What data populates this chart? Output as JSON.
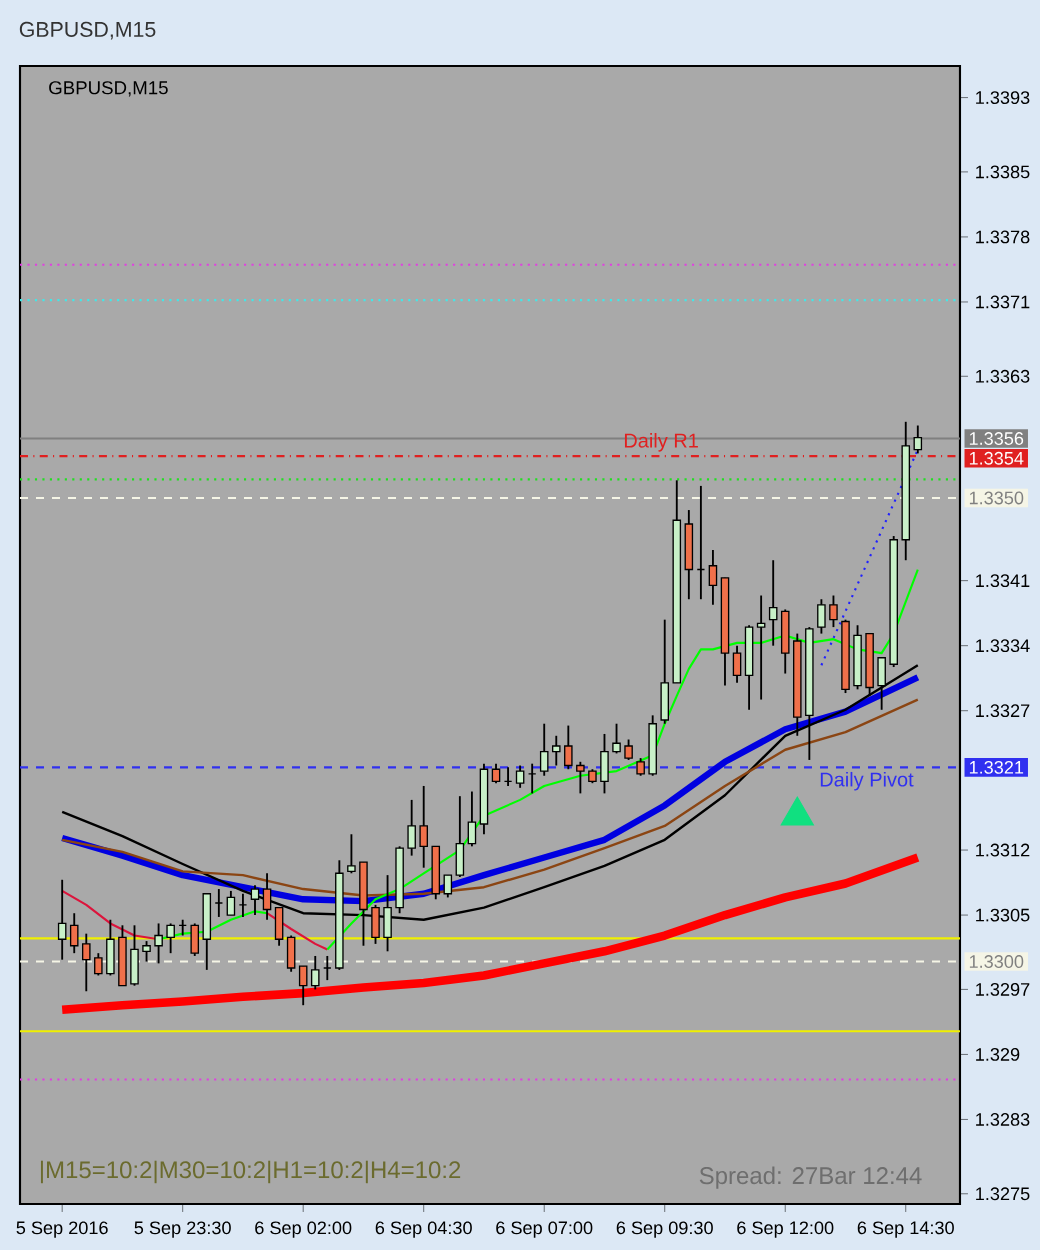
{
  "chart_data": {
    "type": "candlestick",
    "title": "GBPUSD,M15",
    "subtitle": "GBPUSD,M15",
    "categories": [
      "5 Sep 2016",
      null,
      null,
      null,
      null,
      null,
      null,
      null,
      null,
      null,
      "5 Sep 23:30",
      null,
      null,
      null,
      null,
      null,
      null,
      null,
      null,
      null,
      "6 Sep 02:00",
      null,
      null,
      null,
      null,
      null,
      null,
      null,
      null,
      null,
      "6 Sep 04:30",
      null,
      null,
      null,
      null,
      null,
      null,
      null,
      null,
      null,
      "6 Sep 07:00",
      null,
      null,
      null,
      null,
      null,
      null,
      null,
      null,
      null,
      "6 Sep 09:30",
      null,
      null,
      null,
      null,
      null,
      null,
      null,
      null,
      null,
      "6 Sep 12:00",
      null,
      null,
      null,
      null,
      null,
      null,
      null,
      null,
      null,
      "6 Sep 14:30",
      null
    ],
    "ohlc": [
      [
        1.33024,
        1.33088,
        1.33002,
        1.33041
      ],
      [
        1.33039,
        1.33052,
        1.33009,
        1.33017
      ],
      [
        1.33019,
        1.3303,
        1.32968,
        1.33002
      ],
      [
        1.33004,
        1.33009,
        1.32985,
        1.32987
      ],
      [
        1.32987,
        1.33045,
        1.32985,
        1.33024
      ],
      [
        1.33026,
        1.33039,
        1.32974,
        1.32974
      ],
      [
        1.32976,
        1.33039,
        1.32974,
        1.33013
      ],
      [
        1.33011,
        1.33022,
        1.33,
        1.33017
      ],
      [
        1.33017,
        1.33041,
        1.32998,
        1.33028
      ],
      [
        1.33026,
        1.33041,
        1.33009,
        1.33039
      ],
      [
        1.33039,
        1.33045,
        1.33028,
        1.33039
      ],
      [
        1.33039,
        1.33041,
        1.33006,
        1.33009
      ],
      [
        1.33024,
        1.33073,
        1.32991,
        1.33073
      ],
      [
        1.33063,
        1.33078,
        1.33048,
        1.33063
      ],
      [
        1.3305,
        1.33076,
        1.3305,
        1.33069
      ],
      [
        1.33061,
        1.33073,
        1.33048,
        1.33061
      ],
      [
        1.33067,
        1.33082,
        1.3305,
        1.33078
      ],
      [
        1.33078,
        1.33095,
        1.33045,
        1.33056
      ],
      [
        1.33058,
        1.33058,
        1.33017,
        1.33024
      ],
      [
        1.33026,
        1.33028,
        1.32989,
        1.32993
      ],
      [
        1.32995,
        1.32995,
        1.32953,
        1.32974
      ],
      [
        1.32974,
        1.33006,
        1.3297,
        1.32991
      ],
      [
        1.32993,
        1.33006,
        1.3298,
        1.32993
      ],
      [
        1.32993,
        1.33109,
        1.32991,
        1.33095
      ],
      [
        1.33097,
        1.33137,
        1.33095,
        1.33103
      ],
      [
        1.33107,
        1.33107,
        1.33017,
        1.33056
      ],
      [
        1.33058,
        1.33061,
        1.33019,
        1.33026
      ],
      [
        1.33026,
        1.33093,
        1.33011,
        1.33058
      ],
      [
        1.33058,
        1.33124,
        1.33052,
        1.33122
      ],
      [
        1.33122,
        1.33174,
        1.33114,
        1.33146
      ],
      [
        1.33146,
        1.33189,
        1.33101,
        1.33124
      ],
      [
        1.33124,
        1.33124,
        1.33067,
        1.33073
      ],
      [
        1.33073,
        1.33093,
        1.33069,
        1.33093
      ],
      [
        1.33093,
        1.33178,
        1.33091,
        1.33127
      ],
      [
        1.33127,
        1.33183,
        1.33124,
        1.3315
      ],
      [
        1.33148,
        1.33213,
        1.33137,
        1.33207
      ],
      [
        1.33207,
        1.33213,
        1.33192,
        1.33194
      ],
      [
        1.33194,
        1.33209,
        1.33189,
        1.33194
      ],
      [
        1.33192,
        1.33211,
        1.33187,
        1.33205
      ],
      [
        1.33202,
        1.33213,
        1.33181,
        1.33202
      ],
      [
        1.33205,
        1.33256,
        1.332,
        1.33226
      ],
      [
        1.33226,
        1.33243,
        1.33211,
        1.33232
      ],
      [
        1.33232,
        1.33254,
        1.33207,
        1.33211
      ],
      [
        1.33211,
        1.33215,
        1.33181,
        1.33205
      ],
      [
        1.33205,
        1.33207,
        1.33192,
        1.33194
      ],
      [
        1.33194,
        1.33245,
        1.33181,
        1.33226
      ],
      [
        1.33226,
        1.33256,
        1.33224,
        1.33235
      ],
      [
        1.33232,
        1.33239,
        1.33217,
        1.33219
      ],
      [
        1.33215,
        1.33219,
        1.332,
        1.33202
      ],
      [
        1.33202,
        1.33265,
        1.332,
        1.33256
      ],
      [
        1.3326,
        1.33368,
        1.33256,
        1.333
      ],
      [
        1.333,
        1.33518,
        1.333,
        1.33475
      ],
      [
        1.33471,
        1.33486,
        1.3339,
        1.33422
      ],
      [
        1.33422,
        1.33512,
        1.3339,
        1.33422
      ],
      [
        1.33426,
        1.33443,
        1.33384,
        1.33405
      ],
      [
        1.33413,
        1.33413,
        1.33297,
        1.33332
      ],
      [
        1.33332,
        1.3334,
        1.333,
        1.33308
      ],
      [
        1.33308,
        1.33362,
        1.33271,
        1.3336
      ],
      [
        1.3336,
        1.33394,
        1.33282,
        1.33364
      ],
      [
        1.33368,
        1.33432,
        1.3334,
        1.33381
      ],
      [
        1.33377,
        1.33379,
        1.3331,
        1.33332
      ],
      [
        1.33345,
        1.33353,
        1.33243,
        1.33263
      ],
      [
        1.33265,
        1.3336,
        1.33217,
        1.33358
      ],
      [
        1.3336,
        1.3339,
        1.33353,
        1.33384
      ],
      [
        1.33384,
        1.33394,
        1.3336,
        1.33368
      ],
      [
        1.33366,
        1.33368,
        1.33289,
        1.33293
      ],
      [
        1.33297,
        1.33362,
        1.33293,
        1.33351
      ],
      [
        1.33353,
        1.33353,
        1.33286,
        1.33295
      ],
      [
        1.33297,
        1.33327,
        1.33271,
        1.33327
      ],
      [
        1.3332,
        1.33458,
        1.33317,
        1.33454
      ],
      [
        1.33454,
        1.33581,
        1.33432,
        1.33555
      ],
      [
        1.33551,
        1.33577,
        1.33547,
        1.33564
      ]
    ],
    "colors": [
      "#c8f0c8",
      "#f0704a",
      "#f0704a",
      "#f0704a",
      "#c8f0c8",
      "#f0704a",
      "#c8f0c8",
      "#c8f0c8",
      "#c8f0c8",
      "#c8f0c8",
      "#000000",
      "#f0704a",
      "#c8f0c8",
      "#000000",
      "#c8f0c8",
      "#000000",
      "#c8f0c8",
      "#f0704a",
      "#f0704a",
      "#f0704a",
      "#f0704a",
      "#c8f0c8",
      "#000000",
      "#c8f0c8",
      "#c8f0c8",
      "#f0704a",
      "#f0704a",
      "#c8f0c8",
      "#c8f0c8",
      "#c8f0c8",
      "#f0704a",
      "#f0704a",
      "#c8f0c8",
      "#c8f0c8",
      "#c8f0c8",
      "#c8f0c8",
      "#f0704a",
      "#000000",
      "#c8f0c8",
      "#000000",
      "#c8f0c8",
      "#c8f0c8",
      "#f0704a",
      "#f0704a",
      "#f0704a",
      "#c8f0c8",
      "#c8f0c8",
      "#f0704a",
      "#f0704a",
      "#c8f0c8",
      "#c8f0c8",
      "#c8f0c8",
      "#f0704a",
      "#000000",
      "#f0704a",
      "#f0704a",
      "#f0704a",
      "#c8f0c8",
      "#c8f0c8",
      "#c8f0c8",
      "#f0704a",
      "#f0704a",
      "#c8f0c8",
      "#c8f0c8",
      "#f0704a",
      "#f0704a",
      "#c8f0c8",
      "#f0704a",
      "#c8f0c8",
      "#c8f0c8",
      "#c8f0c8",
      "#c8f0c8"
    ],
    "series": [
      {
        "type": "line",
        "color": "#ff0000",
        "values": [
          1.32948,
          null,
          null,
          null,
          null,
          1.32953,
          null,
          null,
          null,
          null,
          1.32957,
          null,
          null,
          null,
          null,
          1.32962,
          null,
          null,
          null,
          null,
          1.32966,
          null,
          null,
          null,
          null,
          1.32972,
          null,
          null,
          null,
          null,
          1.32977,
          null,
          null,
          null,
          null,
          1.32985,
          null,
          null,
          null,
          null,
          1.32998,
          null,
          null,
          null,
          null,
          1.33011,
          null,
          null,
          null,
          null,
          1.33028,
          null,
          null,
          null,
          null,
          1.3305,
          null,
          null,
          null,
          null,
          1.33069,
          null,
          null,
          null,
          null,
          1.33084,
          null,
          null,
          null,
          null,
          null,
          1.33112
        ]
      },
      {
        "type": "line",
        "color": "#0000e0",
        "values": [
          1.33133,
          null,
          null,
          null,
          null,
          1.33114,
          null,
          null,
          null,
          null,
          1.33093,
          null,
          null,
          null,
          null,
          1.3308,
          null,
          null,
          null,
          null,
          1.33067,
          null,
          null,
          null,
          null,
          1.33065,
          null,
          null,
          null,
          null,
          1.33073,
          null,
          null,
          null,
          null,
          1.33093,
          null,
          null,
          null,
          null,
          1.33112,
          null,
          null,
          null,
          null,
          1.33131,
          null,
          null,
          null,
          null,
          1.33168,
          null,
          null,
          null,
          null,
          1.33215,
          null,
          null,
          null,
          null,
          1.3325,
          null,
          null,
          null,
          null,
          1.33269,
          null,
          null,
          null,
          null,
          null,
          1.33306
        ]
      },
      {
        "type": "line",
        "color": "#000000",
        "values": [
          1.33161,
          null,
          null,
          null,
          null,
          1.33135,
          null,
          null,
          null,
          null,
          1.33105,
          null,
          null,
          null,
          null,
          1.33076,
          null,
          null,
          null,
          null,
          1.33052,
          null,
          null,
          null,
          null,
          1.3305,
          null,
          null,
          null,
          null,
          1.33045,
          null,
          null,
          null,
          null,
          1.33058,
          null,
          null,
          null,
          null,
          1.3308,
          null,
          null,
          null,
          null,
          1.33103,
          null,
          null,
          null,
          null,
          1.33131,
          null,
          null,
          null,
          null,
          1.33179,
          null,
          null,
          null,
          null,
          1.33243,
          null,
          null,
          null,
          null,
          1.33271,
          null,
          null,
          null,
          null,
          null,
          1.33319
        ]
      },
      {
        "type": "line",
        "color": "#8b4513",
        "values": [
          1.33131,
          null,
          null,
          null,
          null,
          1.33118,
          null,
          null,
          null,
          null,
          1.33097,
          null,
          null,
          null,
          null,
          1.33093,
          null,
          null,
          null,
          null,
          1.33078,
          null,
          null,
          null,
          null,
          1.33071,
          null,
          null,
          null,
          null,
          1.33073,
          null,
          null,
          null,
          null,
          1.3308,
          null,
          null,
          null,
          null,
          1.33099,
          null,
          null,
          null,
          null,
          1.33122,
          null,
          null,
          null,
          null,
          1.33146,
          null,
          null,
          null,
          null,
          1.33189,
          null,
          null,
          null,
          null,
          1.33228,
          null,
          null,
          null,
          null,
          1.33247,
          null,
          null,
          null,
          null,
          null,
          1.33282
        ]
      },
      {
        "type": "line",
        "color": "#dc143c",
        "values": [
          1.33076,
          null,
          1.33061,
          null,
          1.33041,
          null,
          1.33028,
          null,
          1.33024,
          null,
          null,
          null,
          null,
          null,
          null,
          null,
          null,
          null,
          null,
          null,
          null,
          null,
          null,
          null,
          null,
          null,
          null,
          null,
          null,
          null,
          null,
          null,
          null,
          null,
          null,
          null,
          null,
          null,
          null,
          null,
          null,
          null,
          null,
          null,
          null,
          null,
          null,
          null,
          null,
          null,
          null,
          null,
          null,
          null,
          null,
          null,
          null,
          null,
          null,
          null,
          null,
          null,
          null,
          null,
          null,
          null,
          null,
          null,
          null,
          null,
          null,
          null
        ]
      },
      {
        "type": "line",
        "color": "#00ff00",
        "values": [
          null,
          null,
          null,
          null,
          null,
          null,
          null,
          null,
          1.33024,
          null,
          1.3303,
          null,
          1.33032,
          null,
          1.33045,
          null,
          1.33054,
          1.33052,
          null,
          null,
          null,
          null,
          null,
          null,
          null,
          null,
          null,
          null,
          null,
          null,
          null,
          null,
          null,
          null,
          null,
          null,
          null,
          null,
          null,
          null,
          null,
          null,
          null,
          null,
          null,
          null,
          null,
          null,
          null,
          null,
          null,
          null,
          null,
          null,
          null,
          null,
          null,
          null,
          null,
          null,
          null,
          null,
          null,
          null,
          null,
          null,
          null,
          null,
          null,
          null,
          null,
          null
        ]
      },
      {
        "type": "line",
        "color": "#dc143c",
        "values": [
          null,
          null,
          null,
          null,
          null,
          null,
          null,
          null,
          null,
          null,
          null,
          null,
          null,
          null,
          null,
          null,
          null,
          1.33052,
          null,
          1.33035,
          null,
          1.33019,
          1.33013,
          null,
          null,
          null,
          null,
          null,
          null,
          null,
          null,
          null,
          null,
          null,
          null,
          null,
          null,
          null,
          null,
          null,
          null,
          null,
          null,
          null,
          null,
          null,
          null,
          null,
          null,
          null,
          null,
          null,
          null,
          null,
          null,
          null,
          null,
          null,
          null,
          null,
          null,
          null,
          null,
          null,
          null,
          null,
          null,
          null,
          null,
          null,
          null,
          null
        ]
      },
      {
        "type": "line",
        "color": "#00ff00",
        "values": [
          null,
          null,
          null,
          null,
          null,
          null,
          null,
          null,
          null,
          null,
          null,
          null,
          null,
          null,
          null,
          null,
          null,
          null,
          null,
          null,
          null,
          null,
          1.33013,
          null,
          1.33041,
          null,
          1.33067,
          null,
          1.33078,
          null,
          1.33095,
          null,
          null,
          1.3312,
          null,
          1.33157,
          null,
          null,
          1.33174,
          null,
          1.33189,
          null,
          null,
          1.332,
          null,
          null,
          1.33205,
          null,
          null,
          1.33222,
          1.33256,
          1.33286,
          1.33315,
          1.33336,
          1.33336,
          null,
          1.33343,
          null,
          1.33343,
          null,
          1.33351,
          null,
          1.33343,
          null,
          1.33347,
          null,
          1.33336,
          null,
          1.33332,
          1.33353,
          null,
          1.33422
        ]
      },
      {
        "type": "line",
        "color": "#2020ff",
        "line_style": "dotted",
        "values": [
          null,
          null,
          null,
          null,
          null,
          null,
          null,
          null,
          null,
          null,
          null,
          null,
          null,
          null,
          null,
          null,
          null,
          null,
          null,
          null,
          null,
          null,
          null,
          null,
          null,
          null,
          null,
          null,
          null,
          null,
          null,
          null,
          null,
          null,
          null,
          null,
          null,
          null,
          null,
          null,
          null,
          null,
          null,
          null,
          null,
          null,
          null,
          null,
          null,
          null,
          null,
          null,
          null,
          null,
          null,
          null,
          null,
          null,
          null,
          null,
          null,
          null,
          null,
          1.33319,
          null,
          null,
          null,
          null,
          null,
          null,
          null,
          1.33551
        ]
      },
      {
        "type": "scatter",
        "color": "#10e080",
        "marker": "triangle",
        "values": [
          null,
          null,
          null,
          null,
          null,
          null,
          null,
          null,
          null,
          null,
          null,
          null,
          null,
          null,
          null,
          null,
          null,
          null,
          null,
          null,
          null,
          null,
          null,
          null,
          null,
          null,
          null,
          null,
          null,
          null,
          null,
          null,
          null,
          null,
          null,
          null,
          null,
          null,
          null,
          null,
          null,
          null,
          null,
          null,
          null,
          null,
          null,
          null,
          null,
          null,
          null,
          null,
          null,
          null,
          null,
          null,
          null,
          null,
          null,
          null,
          null,
          1.33157,
          null,
          null,
          null,
          null,
          null,
          null,
          null,
          null,
          null,
          null
        ]
      }
    ],
    "ylim": [
      1.32739,
      1.33964
    ],
    "yticks": [
      1.3393,
      1.3385,
      1.3378,
      1.3371,
      1.3363,
      1.3341,
      1.3334,
      1.3327,
      1.3312,
      1.3305,
      1.3297,
      1.329,
      1.3283,
      1.3275
    ],
    "ref_lines": [
      {
        "axis": "y",
        "value": 1.3375,
        "color": "#e040e0",
        "line_style": "dotted"
      },
      {
        "axis": "y",
        "value": 1.33712,
        "color": "#40e8e8",
        "line_style": "dotted"
      },
      {
        "axis": "y",
        "value": 1.33563,
        "color": "#808080",
        "line_style": "solid",
        "label": "1.3356"
      },
      {
        "axis": "y",
        "value": 1.33544,
        "color": "#e02020",
        "line_style": "dashdot",
        "label": "1.3354"
      },
      {
        "axis": "y",
        "value": 1.33519,
        "color": "#20e020",
        "line_style": "dotted"
      },
      {
        "axis": "y",
        "value": 1.33499,
        "color": "#f5f5e6",
        "line_style": "dashed",
        "label": "1.3350"
      },
      {
        "axis": "y",
        "value": 1.33209,
        "color": "#3030f0",
        "line_style": "dashed",
        "label": "1.3321"
      },
      {
        "axis": "y",
        "value": 1.33025,
        "color": "#f0f000",
        "line_style": "solid"
      },
      {
        "axis": "y",
        "value": 1.33,
        "color": "#f5f5e6",
        "line_style": "dashed",
        "label": "1.3300"
      },
      {
        "axis": "y",
        "value": 1.32925,
        "color": "#f0f000",
        "line_style": "solid"
      },
      {
        "axis": "y",
        "value": 1.32873,
        "color": "#e040e0",
        "line_style": "dotted"
      }
    ],
    "annotations": [
      {
        "text": "Daily R1",
        "y": 1.33544
      },
      {
        "text": "Daily Pivot",
        "y": 1.33209
      },
      "|M15=10:2|M30=10:2|H1=10:2|H4=10:2",
      "Spread: 27Bar  12:44"
    ]
  }
}
